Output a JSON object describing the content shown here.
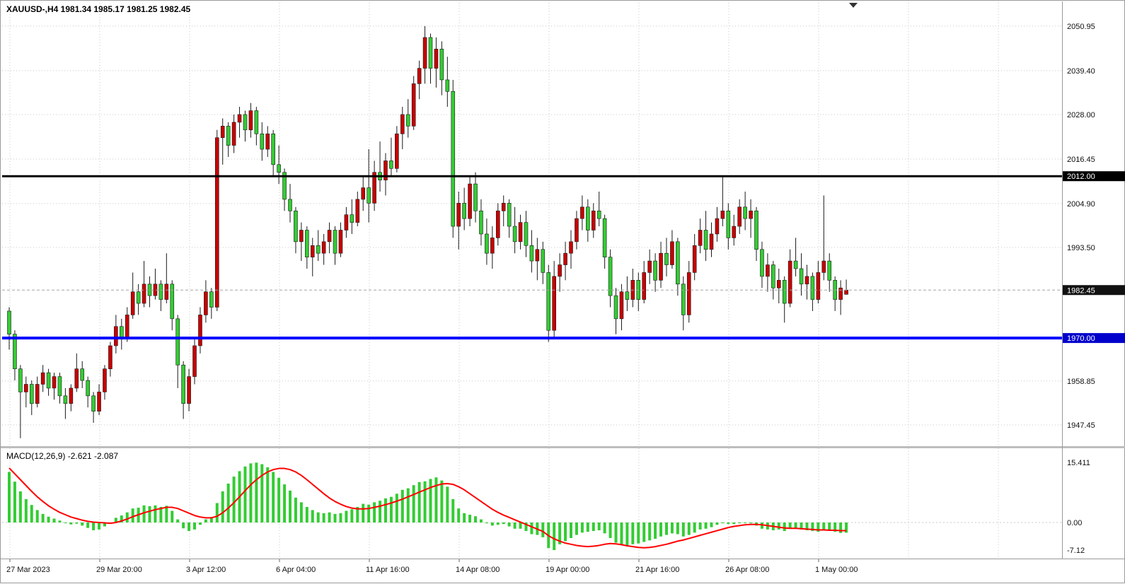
{
  "window": {
    "symbol_title": "XAUUSD-,H4 1981.34 1985.17 1981.25 1982.45",
    "macd_title": "MACD(12,26,9) -2.621 -2.087"
  },
  "colors": {
    "background": "#ffffff",
    "grid": "#c8c8c8",
    "bull": "#c80000",
    "bear": "#33cc33",
    "wick": "#1a1a1a",
    "signal_line": "#ff0000",
    "bid_line": "#a6a6a6",
    "badge_bid_bg": "#111111",
    "badge_blue_bg": "#0000cc",
    "text": "#111111",
    "axis_border": "#9a9a9a",
    "splitter": "#bdbdbd"
  },
  "price_axis": {
    "ticks": [
      {
        "label": "2050.95",
        "price": 2050.95
      },
      {
        "label": "2039.40",
        "price": 2039.4
      },
      {
        "label": "2028.00",
        "price": 2028.0
      },
      {
        "label": "2016.45",
        "price": 2016.45
      },
      {
        "label": "2004.90",
        "price": 2004.9
      },
      {
        "label": "1993.50",
        "price": 1993.5
      },
      {
        "label": "1958.85",
        "price": 1958.85
      },
      {
        "label": "1947.45",
        "price": 1947.45
      }
    ]
  },
  "time_axis": {
    "labels": [
      "27 Mar 2023",
      "29 Mar 20:00",
      "3 Apr 12:00",
      "6 Apr 04:00",
      "11 Apr 16:00",
      "14 Apr 08:00",
      "19 Apr 00:00",
      "21 Apr 16:00",
      "26 Apr 08:00",
      "1 May 00:00"
    ]
  },
  "macd_axis": {
    "ticks": [
      {
        "label": "15.411",
        "value": 15.411
      },
      {
        "label": "0.00",
        "value": 0
      },
      {
        "label": "-7.12",
        "value": -7.12
      }
    ]
  },
  "chart_data": {
    "type": "candlestick",
    "symbol": "XAUUSD-",
    "timeframe": "H4",
    "title": "XAUUSD-,H4",
    "last_ohlc": {
      "open": 1981.34,
      "high": 1985.17,
      "low": 1981.25,
      "close": 1982.45
    },
    "ylim": [
      1942,
      2056
    ],
    "grid": true,
    "levels": [
      {
        "price": 2012.0,
        "label": "2012.00",
        "color": "#000000",
        "width": 3,
        "badge_bg": "#000000"
      },
      {
        "price": 1970.0,
        "label": "1970.00",
        "color": "#0000ff",
        "width": 4,
        "badge_bg": "#0000cc"
      }
    ],
    "bid": {
      "price": 1982.45,
      "label": "1982.45"
    },
    "ohlc": [
      [
        1977,
        1978,
        1967,
        1971
      ],
      [
        1971,
        1972,
        1959,
        1962
      ],
      [
        1962,
        1963,
        1944,
        1956
      ],
      [
        1956,
        1960,
        1952,
        1958
      ],
      [
        1958,
        1959,
        1950,
        1953
      ],
      [
        1953,
        1960,
        1952,
        1958
      ],
      [
        1958,
        1963,
        1956,
        1961
      ],
      [
        1961,
        1962,
        1955,
        1957
      ],
      [
        1957,
        1961,
        1954,
        1960
      ],
      [
        1960,
        1961,
        1953,
        1955
      ],
      [
        1955,
        1957,
        1949,
        1953
      ],
      [
        1953,
        1958,
        1951,
        1957
      ],
      [
        1957,
        1966,
        1956,
        1962
      ],
      [
        1962,
        1964,
        1957,
        1959
      ],
      [
        1959,
        1960,
        1952,
        1955
      ],
      [
        1955,
        1956,
        1948,
        1951
      ],
      [
        1951,
        1958,
        1950,
        1956
      ],
      [
        1956,
        1963,
        1954,
        1962
      ],
      [
        1962,
        1969,
        1960,
        1968
      ],
      [
        1968,
        1976,
        1966,
        1973
      ],
      [
        1973,
        1975,
        1967,
        1970
      ],
      [
        1970,
        1978,
        1969,
        1976
      ],
      [
        1976,
        1987,
        1975,
        1982
      ],
      [
        1982,
        1984,
        1976,
        1979
      ],
      [
        1979,
        1990,
        1978,
        1984
      ],
      [
        1984,
        1986,
        1978,
        1981
      ],
      [
        1981,
        1988,
        1980,
        1984
      ],
      [
        1984,
        1985,
        1977,
        1980
      ],
      [
        1980,
        1992,
        1979,
        1984
      ],
      [
        1984,
        1985,
        1972,
        1975
      ],
      [
        1975,
        1976,
        1957,
        1963
      ],
      [
        1963,
        1964,
        1949,
        1953
      ],
      [
        1953,
        1962,
        1951,
        1960
      ],
      [
        1960,
        1970,
        1958,
        1968
      ],
      [
        1968,
        1978,
        1966,
        1976
      ],
      [
        1976,
        1985,
        1974,
        1982
      ],
      [
        1982,
        1983,
        1975,
        1978
      ],
      [
        1978,
        2024,
        1977,
        2022
      ],
      [
        2022,
        2027,
        2015,
        2025
      ],
      [
        2025,
        2026,
        2017,
        2020
      ],
      [
        2020,
        2028,
        2018,
        2026
      ],
      [
        2026,
        2030,
        2022,
        2028
      ],
      [
        2028,
        2029,
        2021,
        2024
      ],
      [
        2024,
        2031,
        2022,
        2029
      ],
      [
        2029,
        2030,
        2020,
        2023
      ],
      [
        2023,
        2026,
        2016,
        2019
      ],
      [
        2019,
        2025,
        2017,
        2023
      ],
      [
        2023,
        2024,
        2012,
        2015
      ],
      [
        2015,
        2020,
        2010,
        2013
      ],
      [
        2013,
        2014,
        2003,
        2006
      ],
      [
        2006,
        2010,
        2000,
        2003
      ],
      [
        2003,
        2004,
        1992,
        1995
      ],
      [
        1995,
        2000,
        1990,
        1998
      ],
      [
        1998,
        1999,
        1988,
        1991
      ],
      [
        1991,
        1996,
        1986,
        1994
      ],
      [
        1994,
        1998,
        1990,
        1992
      ],
      [
        1992,
        1997,
        1989,
        1995
      ],
      [
        1995,
        2000,
        1992,
        1998
      ],
      [
        1998,
        1999,
        1989,
        1992
      ],
      [
        1992,
        2000,
        1991,
        1998
      ],
      [
        1998,
        2004,
        1996,
        2002
      ],
      [
        2002,
        2006,
        1997,
        2000
      ],
      [
        2000,
        2008,
        1999,
        2006
      ],
      [
        2006,
        2012,
        2003,
        2009
      ],
      [
        2009,
        2019,
        2000,
        2005
      ],
      [
        2005,
        2016,
        2003,
        2013
      ],
      [
        2013,
        2021,
        2008,
        2011
      ],
      [
        2011,
        2018,
        2007,
        2016
      ],
      [
        2016,
        2022,
        2012,
        2014
      ],
      [
        2014,
        2025,
        2013,
        2023
      ],
      [
        2023,
        2030,
        2019,
        2028
      ],
      [
        2028,
        2032,
        2022,
        2025
      ],
      [
        2025,
        2038,
        2024,
        2036
      ],
      [
        2036,
        2042,
        2032,
        2040
      ],
      [
        2040,
        2050.95,
        2036,
        2048
      ],
      [
        2048,
        2049,
        2036,
        2040
      ],
      [
        2040,
        2048,
        2035,
        2045
      ],
      [
        2045,
        2047,
        2033,
        2037
      ],
      [
        2037,
        2043,
        2030,
        2034
      ],
      [
        2034,
        2037,
        1996,
        1999
      ],
      [
        1999,
        2008,
        1993,
        2005
      ],
      [
        2005,
        2009,
        1998,
        2001
      ],
      [
        2001,
        2012,
        1999,
        2010
      ],
      [
        2010,
        2013,
        2000,
        2003
      ],
      [
        2003,
        2006,
        1994,
        1997
      ],
      [
        1997,
        2001,
        1989,
        1992
      ],
      [
        1992,
        1999,
        1988,
        1996
      ],
      [
        1996,
        2005,
        1994,
        2003
      ],
      [
        2003,
        2007,
        1999,
        2005
      ],
      [
        2005,
        2006,
        1996,
        1999
      ],
      [
        1999,
        2004,
        1992,
        1995
      ],
      [
        1995,
        2002,
        1993,
        2000
      ],
      [
        2000,
        2003,
        1991,
        1994
      ],
      [
        1994,
        1998,
        1987,
        1990
      ],
      [
        1990,
        1996,
        1985,
        1993
      ],
      [
        1993,
        1995,
        1984,
        1987
      ],
      [
        1987,
        1989,
        1969,
        1972
      ],
      [
        1972,
        1990,
        1970,
        1986
      ],
      [
        1986,
        1992,
        1982,
        1989
      ],
      [
        1989,
        1995,
        1985,
        1992
      ],
      [
        1992,
        1998,
        1988,
        1995
      ],
      [
        1995,
        2003,
        1993,
        2001
      ],
      [
        2001,
        2007,
        1998,
        2004
      ],
      [
        2004,
        2006,
        1995,
        1998
      ],
      [
        1998,
        2005,
        1996,
        2003
      ],
      [
        2003,
        2008,
        1999,
        2001
      ],
      [
        2001,
        2002,
        1988,
        1991
      ],
      [
        1991,
        1993,
        1978,
        1981
      ],
      [
        1981,
        1983,
        1971,
        1975
      ],
      [
        1975,
        1984,
        1972,
        1982
      ],
      [
        1982,
        1986,
        1977,
        1980
      ],
      [
        1980,
        1988,
        1978,
        1985
      ],
      [
        1985,
        1987,
        1977,
        1980
      ],
      [
        1980,
        1990,
        1979,
        1987
      ],
      [
        1987,
        1993,
        1984,
        1990
      ],
      [
        1990,
        1992,
        1982,
        1985
      ],
      [
        1985,
        1995,
        1983,
        1992
      ],
      [
        1992,
        1996,
        1986,
        1989
      ],
      [
        1989,
        1998,
        1988,
        1995
      ],
      [
        1995,
        1996,
        1981,
        1984
      ],
      [
        1984,
        1986,
        1972,
        1976
      ],
      [
        1976,
        1990,
        1974,
        1987
      ],
      [
        1987,
        1997,
        1985,
        1994
      ],
      [
        1994,
        2001,
        1992,
        1998
      ],
      [
        1998,
        2003,
        1990,
        1993
      ],
      [
        1993,
        2000,
        1991,
        1997
      ],
      [
        1997,
        2004,
        1995,
        2001
      ],
      [
        2001,
        2012,
        1999,
        2003
      ],
      [
        2003,
        2005,
        1993,
        1996
      ],
      [
        1996,
        2002,
        1994,
        1999
      ],
      [
        1999,
        2006,
        1997,
        2004
      ],
      [
        2004,
        2008,
        1998,
        2001
      ],
      [
        2001,
        2006,
        1996,
        2003
      ],
      [
        2003,
        2004,
        1990,
        1993
      ],
      [
        1993,
        1995,
        1983,
        1986
      ],
      [
        1986,
        1992,
        1982,
        1989
      ],
      [
        1989,
        1990,
        1980,
        1983
      ],
      [
        1983,
        1988,
        1979,
        1985
      ],
      [
        1985,
        1986,
        1974,
        1979
      ],
      [
        1979,
        1993,
        1978,
        1990
      ],
      [
        1990,
        1996,
        1986,
        1988
      ],
      [
        1988,
        1992,
        1981,
        1984
      ],
      [
        1984,
        1989,
        1980,
        1986
      ],
      [
        1986,
        1987,
        1977,
        1980
      ],
      [
        1980,
        1990,
        1979,
        1987
      ],
      [
        1987,
        2007,
        1985,
        1990
      ],
      [
        1990,
        1992,
        1982,
        1985
      ],
      [
        1985,
        1986,
        1977,
        1980
      ],
      [
        1980,
        1985,
        1976,
        1983
      ],
      [
        1981.34,
        1985.17,
        1981.25,
        1982.45
      ]
    ],
    "macd": {
      "params": "12,26,9",
      "current_macd": -2.621,
      "current_signal": -2.087,
      "histogram": [
        13.0,
        10.5,
        8.0,
        6.0,
        4.5,
        3.2,
        2.2,
        1.5,
        1.0,
        0.5,
        0.0,
        -0.5,
        -0.3,
        -0.8,
        -1.4,
        -2.0,
        -1.8,
        -1.0,
        0.0,
        1.2,
        1.8,
        2.6,
        3.6,
        3.8,
        4.4,
        4.2,
        4.4,
        4.0,
        4.3,
        3.0,
        0.8,
        -1.5,
        -2.2,
        -1.8,
        -0.6,
        0.8,
        1.4,
        5.0,
        8.0,
        10.0,
        11.8,
        13.2,
        14.4,
        15.2,
        15.4,
        15.0,
        14.2,
        13.0,
        11.5,
        9.8,
        8.2,
        6.4,
        5.2,
        4.0,
        3.2,
        2.6,
        2.4,
        2.6,
        2.2,
        2.4,
        3.0,
        3.4,
        4.0,
        4.8,
        4.6,
        5.2,
        5.6,
        6.2,
        6.6,
        7.4,
        8.4,
        8.8,
        9.6,
        10.4,
        10.6,
        11.2,
        11.6,
        10.8,
        9.2,
        6.0,
        3.6,
        2.4,
        2.0,
        1.6,
        0.8,
        -0.2,
        -0.8,
        -0.6,
        -0.4,
        -1.0,
        -1.6,
        -1.6,
        -2.2,
        -3.0,
        -3.2,
        -3.8,
        -6.6,
        -7.1,
        -5.6,
        -4.8,
        -4.0,
        -3.2,
        -2.6,
        -2.4,
        -2.2,
        -2.0,
        -2.8,
        -4.0,
        -5.2,
        -5.8,
        -6.0,
        -5.6,
        -5.4,
        -5.0,
        -4.6,
        -4.2,
        -3.6,
        -3.2,
        -2.8,
        -3.0,
        -3.6,
        -3.2,
        -2.6,
        -1.8,
        -1.6,
        -1.2,
        -0.6,
        -0.2,
        -0.4,
        -0.4,
        -0.2,
        -0.1,
        -0.2,
        -0.8,
        -1.6,
        -1.8,
        -2.0,
        -1.8,
        -2.2,
        -1.6,
        -1.4,
        -1.8,
        -2.0,
        -2.2,
        -2.4,
        -1.8,
        -2.0,
        -2.4,
        -2.7,
        -2.621
      ],
      "signal": [
        14.0,
        12.5,
        11.0,
        9.5,
        8.0,
        6.6,
        5.4,
        4.3,
        3.4,
        2.6,
        2.0,
        1.4,
        1.0,
        0.6,
        0.3,
        0.1,
        0.0,
        -0.1,
        -0.2,
        0.0,
        0.4,
        0.9,
        1.5,
        2.0,
        2.5,
        2.9,
        3.3,
        3.6,
        3.9,
        3.9,
        3.6,
        3.0,
        2.4,
        1.8,
        1.4,
        1.2,
        1.2,
        1.6,
        2.5,
        3.7,
        5.1,
        6.6,
        8.2,
        9.7,
        11.0,
        12.1,
        13.0,
        13.6,
        13.9,
        13.9,
        13.6,
        13.0,
        12.1,
        11.0,
        9.8,
        8.6,
        7.4,
        6.3,
        5.4,
        4.7,
        4.1,
        3.7,
        3.5,
        3.5,
        3.6,
        3.9,
        4.2,
        4.6,
        5.0,
        5.5,
        6.0,
        6.6,
        7.2,
        7.8,
        8.4,
        9.0,
        9.5,
        9.9,
        10.0,
        9.8,
        9.2,
        8.4,
        7.4,
        6.4,
        5.4,
        4.4,
        3.4,
        2.6,
        1.9,
        1.3,
        0.7,
        0.1,
        -0.5,
        -1.1,
        -1.7,
        -2.3,
        -3.4,
        -4.2,
        -4.8,
        -5.3,
        -5.6,
        -5.9,
        -6.1,
        -6.2,
        -6.1,
        -5.9,
        -5.6,
        -5.4,
        -5.5,
        -5.7,
        -6.0,
        -6.2,
        -6.4,
        -6.5,
        -6.4,
        -6.2,
        -5.9,
        -5.6,
        -5.2,
        -4.8,
        -4.5,
        -4.1,
        -3.7,
        -3.3,
        -2.9,
        -2.5,
        -2.1,
        -1.7,
        -1.3,
        -1.0,
        -0.8,
        -0.6,
        -0.5,
        -0.5,
        -0.6,
        -0.8,
        -1.0,
        -1.2,
        -1.4,
        -1.5,
        -1.5,
        -1.6,
        -1.7,
        -1.8,
        -1.9,
        -1.9,
        -2.0,
        -2.0,
        -2.1,
        -2.087
      ]
    }
  }
}
